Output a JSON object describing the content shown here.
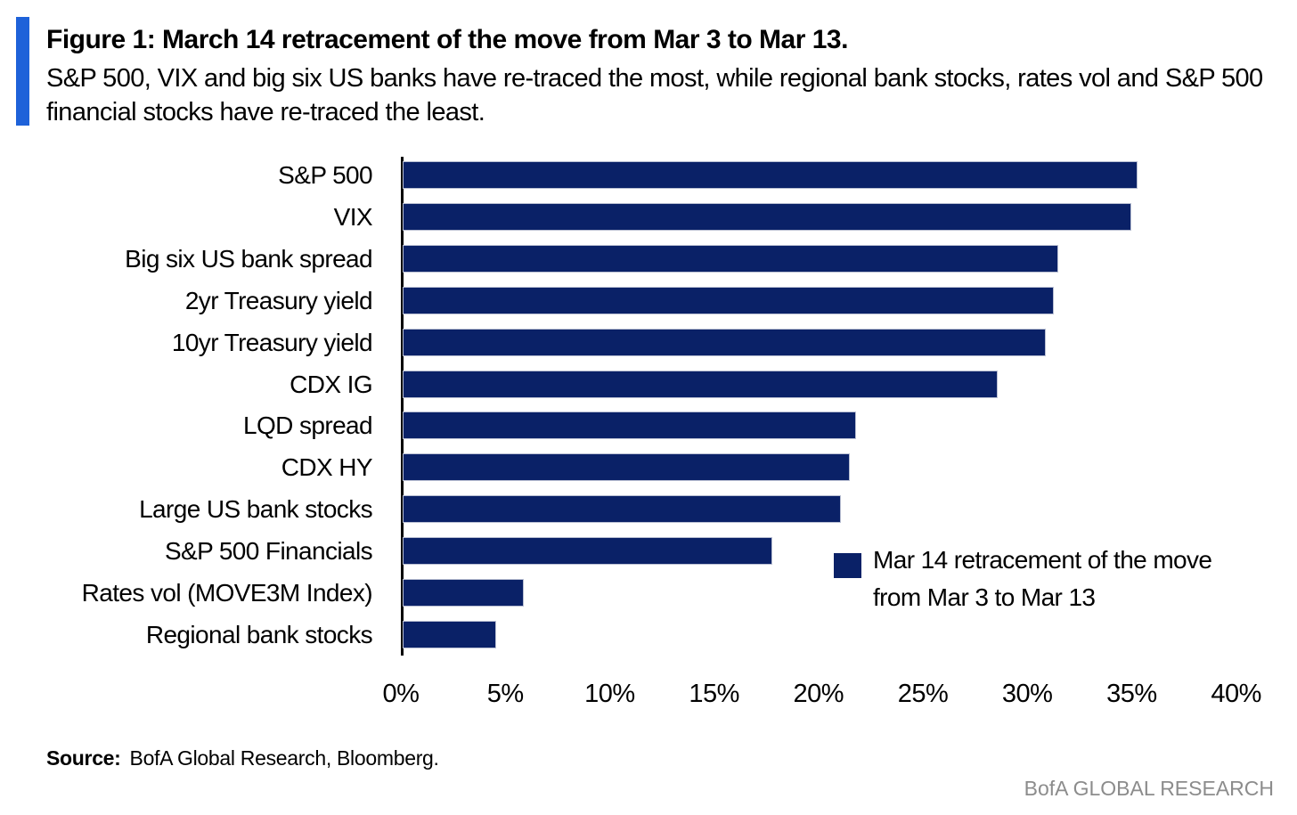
{
  "figure": {
    "title": "Figure 1: March 14 retracement of the move from Mar 3 to Mar 13.",
    "subtitle": "S&P 500, VIX and big six US banks have re-traced the most, while regional bank stocks, rates vol and S&P 500 financial stocks have re-traced the least.",
    "source_label": "Source:",
    "source_text": "BofA Global Research, Bloomberg.",
    "footer": "BofA GLOBAL RESEARCH",
    "accent_color": "#1e62d9",
    "footer_color": "#8c8c8c"
  },
  "chart_data": {
    "type": "bar",
    "orientation": "horizontal",
    "title": "",
    "xlabel": "",
    "ylabel": "",
    "unit": "%",
    "categories": [
      "S&P 500",
      "VIX",
      "Big six US bank spread",
      "2yr Treasury yield",
      "10yr Treasury yield",
      "CDX IG",
      "LQD spread",
      "CDX HY",
      "Large US bank stocks",
      "S&P 500 Financials",
      "Rates vol (MOVE3M Index)",
      "Regional bank stocks"
    ],
    "values": [
      35.2,
      34.9,
      31.4,
      31.2,
      30.8,
      28.5,
      21.7,
      21.4,
      21.0,
      17.7,
      5.8,
      4.5
    ],
    "xlim": [
      0,
      40
    ],
    "xtick_values": [
      0,
      5,
      10,
      15,
      20,
      25,
      30,
      35,
      40
    ],
    "xtick_labels": [
      "0%",
      "5%",
      "10%",
      "15%",
      "20%",
      "25%",
      "30%",
      "35%",
      "40%"
    ],
    "grid": false,
    "bar_color": "#0a2167",
    "legend": {
      "label": "Mar 14 retracement of the move from Mar 3 to Mar 13",
      "marker_color": "#0a2167",
      "position": "inside-right"
    }
  }
}
